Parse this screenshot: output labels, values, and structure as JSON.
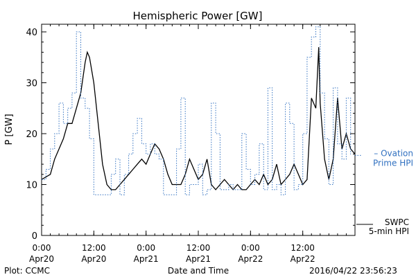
{
  "chart_data": {
    "type": "line",
    "title": "Hemispheric Power [GW]",
    "xlabel": "Date and Time",
    "ylabel": "P [GW]",
    "ylim": [
      0,
      41.5
    ],
    "y_ticks": [
      0,
      10,
      20,
      30,
      40
    ],
    "x_range": [
      "2016-04-20 00:00",
      "2016-04-23 00:00"
    ],
    "x_ticks": [
      {
        "t": "2016-04-20 00:00",
        "time": "0:00",
        "date": "Apr20"
      },
      {
        "t": "2016-04-20 12:00",
        "time": "12:00",
        "date": "Apr20"
      },
      {
        "t": "2016-04-21 00:00",
        "time": "0:00",
        "date": "Apr21"
      },
      {
        "t": "2016-04-21 12:00",
        "time": "12:00",
        "date": "Apr21"
      },
      {
        "t": "2016-04-22 00:00",
        "time": "0:00",
        "date": "Apr22"
      },
      {
        "t": "2016-04-22 12:00",
        "time": "12:00",
        "date": "Apr22"
      }
    ],
    "grid": false,
    "legend_position": "right",
    "series": [
      {
        "name": "SWPC 5-min HPI",
        "label_lines": [
          "SWPC",
          "5-min HPI"
        ],
        "color": "#000000",
        "style": "solid",
        "x": [
          "2016-04-20 00:00",
          "2016-04-20 02:00",
          "2016-04-20 03:00",
          "2016-04-20 04:00",
          "2016-04-20 05:00",
          "2016-04-20 06:00",
          "2016-04-20 07:00",
          "2016-04-20 08:00",
          "2016-04-20 09:00",
          "2016-04-20 10:00",
          "2016-04-20 10:30",
          "2016-04-20 11:00",
          "2016-04-20 12:00",
          "2016-04-20 13:00",
          "2016-04-20 14:00",
          "2016-04-20 15:00",
          "2016-04-20 16:00",
          "2016-04-20 17:00",
          "2016-04-20 18:00",
          "2016-04-20 19:00",
          "2016-04-20 20:00",
          "2016-04-20 21:00",
          "2016-04-20 22:00",
          "2016-04-20 23:00",
          "2016-04-21 00:00",
          "2016-04-21 01:00",
          "2016-04-21 02:00",
          "2016-04-21 03:00",
          "2016-04-21 04:00",
          "2016-04-21 05:00",
          "2016-04-21 06:00",
          "2016-04-21 07:00",
          "2016-04-21 08:00",
          "2016-04-21 09:00",
          "2016-04-21 10:00",
          "2016-04-21 11:00",
          "2016-04-21 12:00",
          "2016-04-21 13:00",
          "2016-04-21 14:00",
          "2016-04-21 15:00",
          "2016-04-21 16:00",
          "2016-04-21 17:00",
          "2016-04-21 18:00",
          "2016-04-21 19:00",
          "2016-04-21 20:00",
          "2016-04-21 21:00",
          "2016-04-21 22:00",
          "2016-04-21 23:00",
          "2016-04-22 00:00",
          "2016-04-22 01:00",
          "2016-04-22 02:00",
          "2016-04-22 03:00",
          "2016-04-22 04:00",
          "2016-04-22 05:00",
          "2016-04-22 06:00",
          "2016-04-22 07:00",
          "2016-04-22 08:00",
          "2016-04-22 09:00",
          "2016-04-22 10:00",
          "2016-04-22 11:00",
          "2016-04-22 12:00",
          "2016-04-22 13:00",
          "2016-04-22 14:00",
          "2016-04-22 15:00",
          "2016-04-22 15:40",
          "2016-04-22 16:00",
          "2016-04-22 17:00",
          "2016-04-22 18:00",
          "2016-04-22 19:00",
          "2016-04-22 20:00",
          "2016-04-22 21:00",
          "2016-04-22 22:00",
          "2016-04-22 23:00",
          "2016-04-23 00:00"
        ],
        "values": [
          11,
          12,
          15,
          17,
          19,
          22,
          22,
          25,
          28,
          34,
          36,
          35,
          30,
          22,
          14,
          10,
          9,
          9,
          10,
          11,
          12,
          13,
          14,
          15,
          14,
          16,
          18,
          17,
          15,
          12,
          10,
          10,
          10,
          12,
          15,
          13,
          11,
          12,
          15,
          10,
          9,
          10,
          11,
          10,
          9,
          10,
          9,
          9,
          10,
          11,
          10,
          12,
          10,
          11,
          14,
          10,
          11,
          12,
          14,
          12,
          10,
          11,
          27,
          25,
          37,
          26,
          15,
          11,
          15,
          27,
          17,
          20,
          17,
          16
        ]
      },
      {
        "name": "Ovation Prime HPI",
        "label_lines": [
          "– Ovation",
          "Prime HPI"
        ],
        "color": "#3070c0",
        "style": "dotted",
        "x": [
          "2016-04-20 00:00",
          "2016-04-20 01:00",
          "2016-04-20 02:00",
          "2016-04-20 03:00",
          "2016-04-20 04:00",
          "2016-04-20 05:00",
          "2016-04-20 06:00",
          "2016-04-20 07:00",
          "2016-04-20 08:00",
          "2016-04-20 09:00",
          "2016-04-20 10:00",
          "2016-04-20 11:00",
          "2016-04-20 12:00",
          "2016-04-20 13:00",
          "2016-04-20 14:00",
          "2016-04-20 15:00",
          "2016-04-20 16:00",
          "2016-04-20 17:00",
          "2016-04-20 18:00",
          "2016-04-20 19:00",
          "2016-04-20 20:00",
          "2016-04-20 21:00",
          "2016-04-20 22:00",
          "2016-04-20 23:00",
          "2016-04-21 00:00",
          "2016-04-21 01:00",
          "2016-04-21 02:00",
          "2016-04-21 03:00",
          "2016-04-21 04:00",
          "2016-04-21 05:00",
          "2016-04-21 06:00",
          "2016-04-21 07:00",
          "2016-04-21 08:00",
          "2016-04-21 09:00",
          "2016-04-21 10:00",
          "2016-04-21 11:00",
          "2016-04-21 12:00",
          "2016-04-21 13:00",
          "2016-04-21 14:00",
          "2016-04-21 15:00",
          "2016-04-21 16:00",
          "2016-04-21 17:00",
          "2016-04-21 18:00",
          "2016-04-21 19:00",
          "2016-04-21 20:00",
          "2016-04-21 21:00",
          "2016-04-21 22:00",
          "2016-04-21 23:00",
          "2016-04-22 00:00",
          "2016-04-22 01:00",
          "2016-04-22 02:00",
          "2016-04-22 03:00",
          "2016-04-22 04:00",
          "2016-04-22 05:00",
          "2016-04-22 06:00",
          "2016-04-22 07:00",
          "2016-04-22 08:00",
          "2016-04-22 09:00",
          "2016-04-22 10:00",
          "2016-04-22 11:00",
          "2016-04-22 12:00",
          "2016-04-22 13:00",
          "2016-04-22 14:00",
          "2016-04-22 15:00",
          "2016-04-22 16:00",
          "2016-04-22 17:00",
          "2016-04-22 18:00",
          "2016-04-22 19:00",
          "2016-04-22 20:00",
          "2016-04-22 21:00",
          "2016-04-22 22:00",
          "2016-04-22 23:00"
        ],
        "values": [
          11,
          13,
          17,
          20,
          26,
          22,
          25,
          28,
          40,
          27,
          25,
          19,
          8,
          8,
          8,
          8,
          12,
          15,
          8,
          12,
          16,
          20,
          23,
          18,
          16,
          18,
          16,
          15,
          8,
          8,
          8,
          17,
          27,
          8,
          10,
          10,
          14,
          8,
          9,
          26,
          20,
          9,
          9,
          10,
          9,
          9,
          20,
          13,
          10,
          12,
          18,
          9,
          29,
          9,
          10,
          8,
          26,
          22,
          9,
          10,
          20,
          35,
          39,
          41,
          28,
          19,
          10,
          29,
          18,
          15,
          27,
          16
        ]
      }
    ],
    "footer": {
      "left": "Plot: CCMC",
      "right": "2016/04/22 23:56:23"
    }
  }
}
